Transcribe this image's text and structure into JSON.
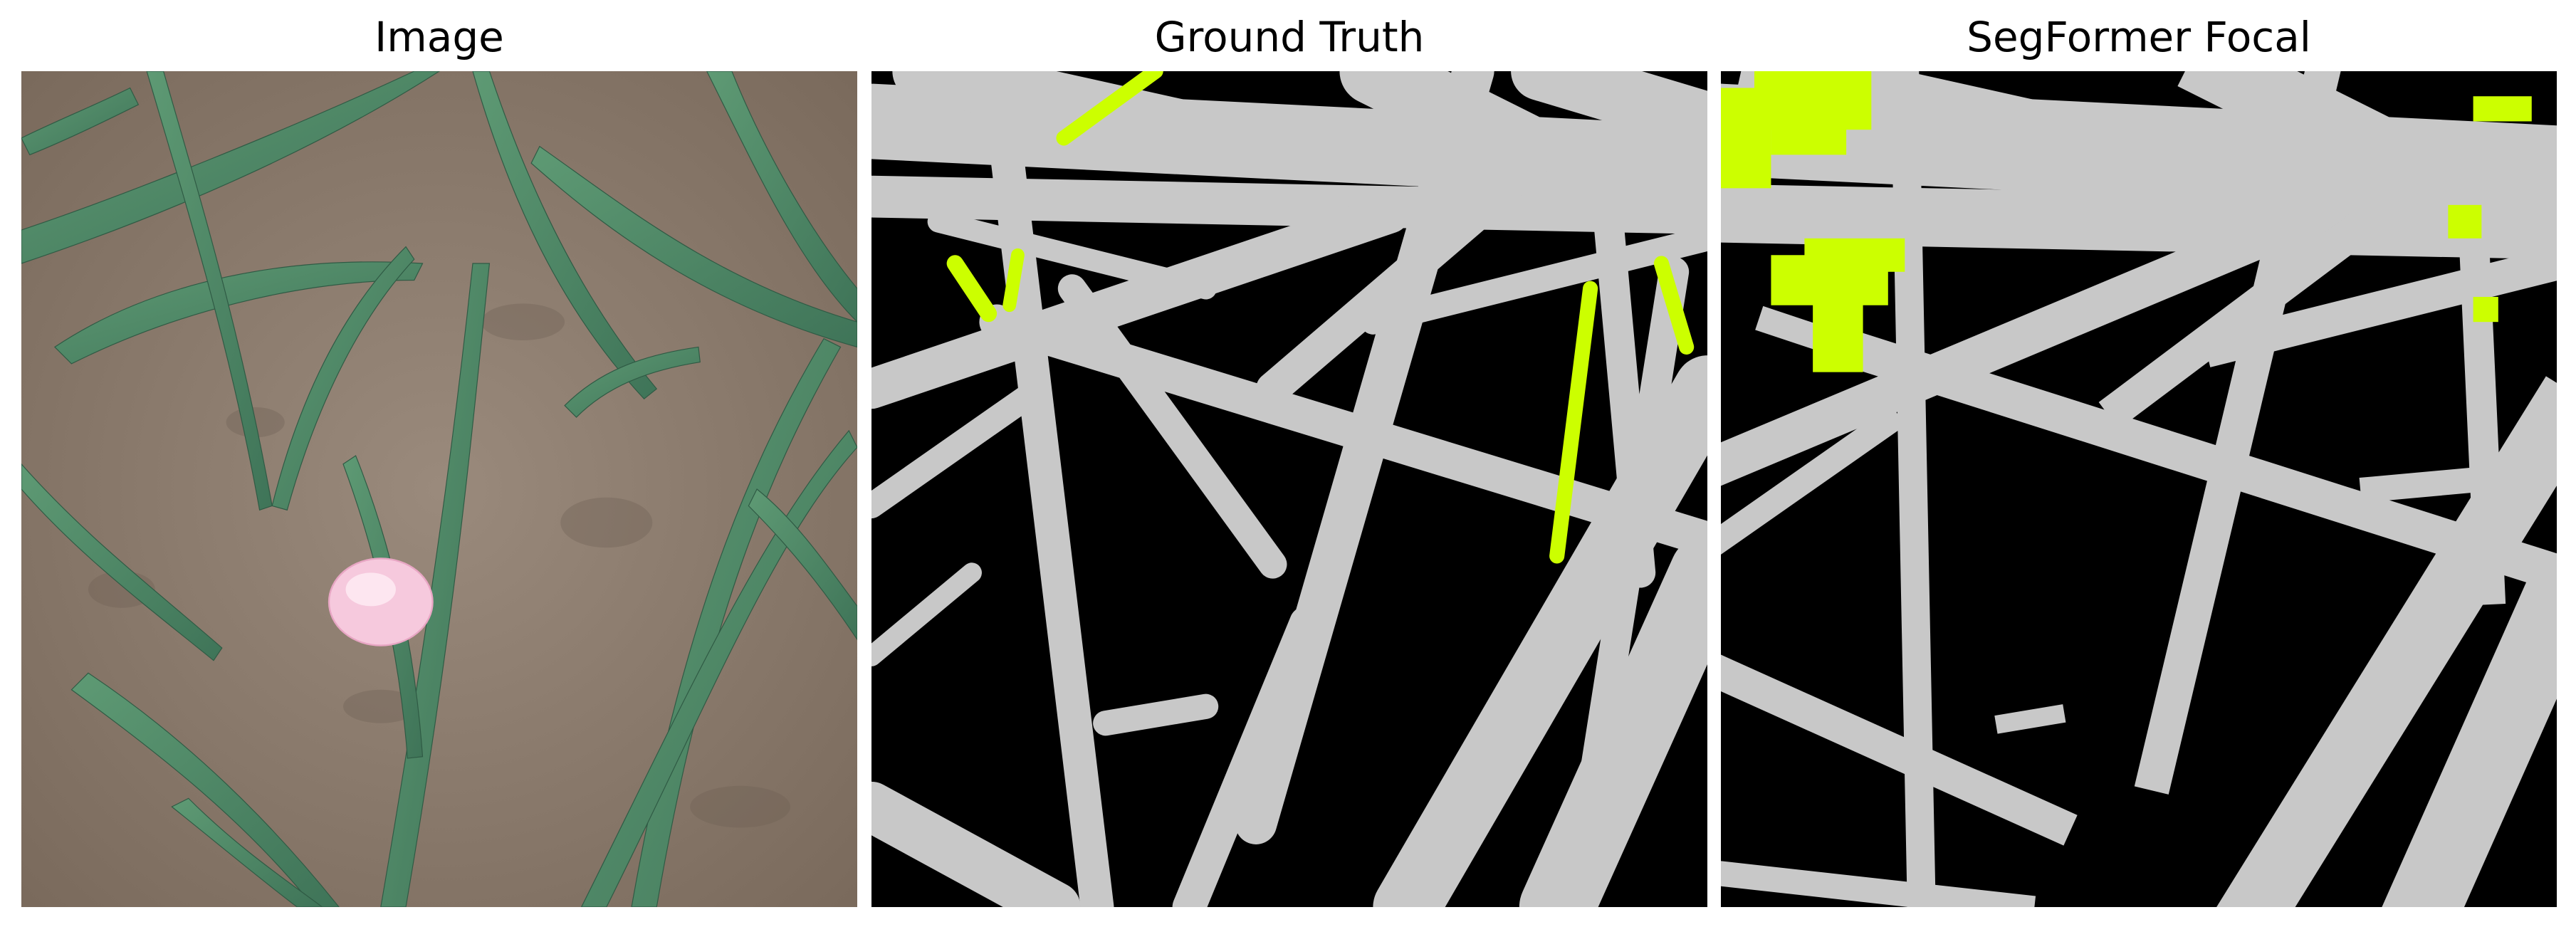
{
  "panels": [
    {
      "title": "Image"
    },
    {
      "title": "Ground Truth"
    },
    {
      "title": "SegFormer Focal"
    }
  ],
  "colors": {
    "background": "#ffffff",
    "mask_background": "#000000",
    "mask_plant": "#c8c8c8",
    "mask_highlight": "#ccff00",
    "soil": "#8a7a6c",
    "leaf": "#4f8a66",
    "petal": "#f4c8dc"
  }
}
